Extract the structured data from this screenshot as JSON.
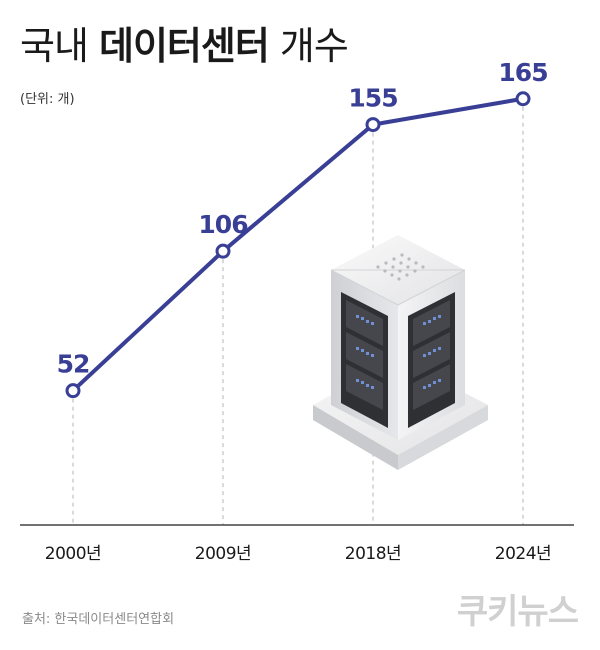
{
  "header": {
    "title_light_1": "국내",
    "title_bold": "데이터센터",
    "title_light_2": "개수",
    "unit": "(단위: 개)"
  },
  "footer": {
    "source": "출처: 한국데이터센터연합회",
    "brand": "쿠키뉴스"
  },
  "colors": {
    "line": "#3a3f96",
    "grid": "#b5b5b5",
    "axis": "#444444"
  },
  "illustration": {
    "icon": "server-tower-icon"
  },
  "chart_data": {
    "type": "line",
    "categories": [
      "2000년",
      "2009년",
      "2018년",
      "2024년"
    ],
    "values": [
      52,
      106,
      155,
      165
    ],
    "title": "국내 데이터센터 개수",
    "xlabel": "",
    "ylabel": "",
    "unit": "(단위: 개)",
    "ylim": [
      0,
      180
    ],
    "grid": false
  }
}
